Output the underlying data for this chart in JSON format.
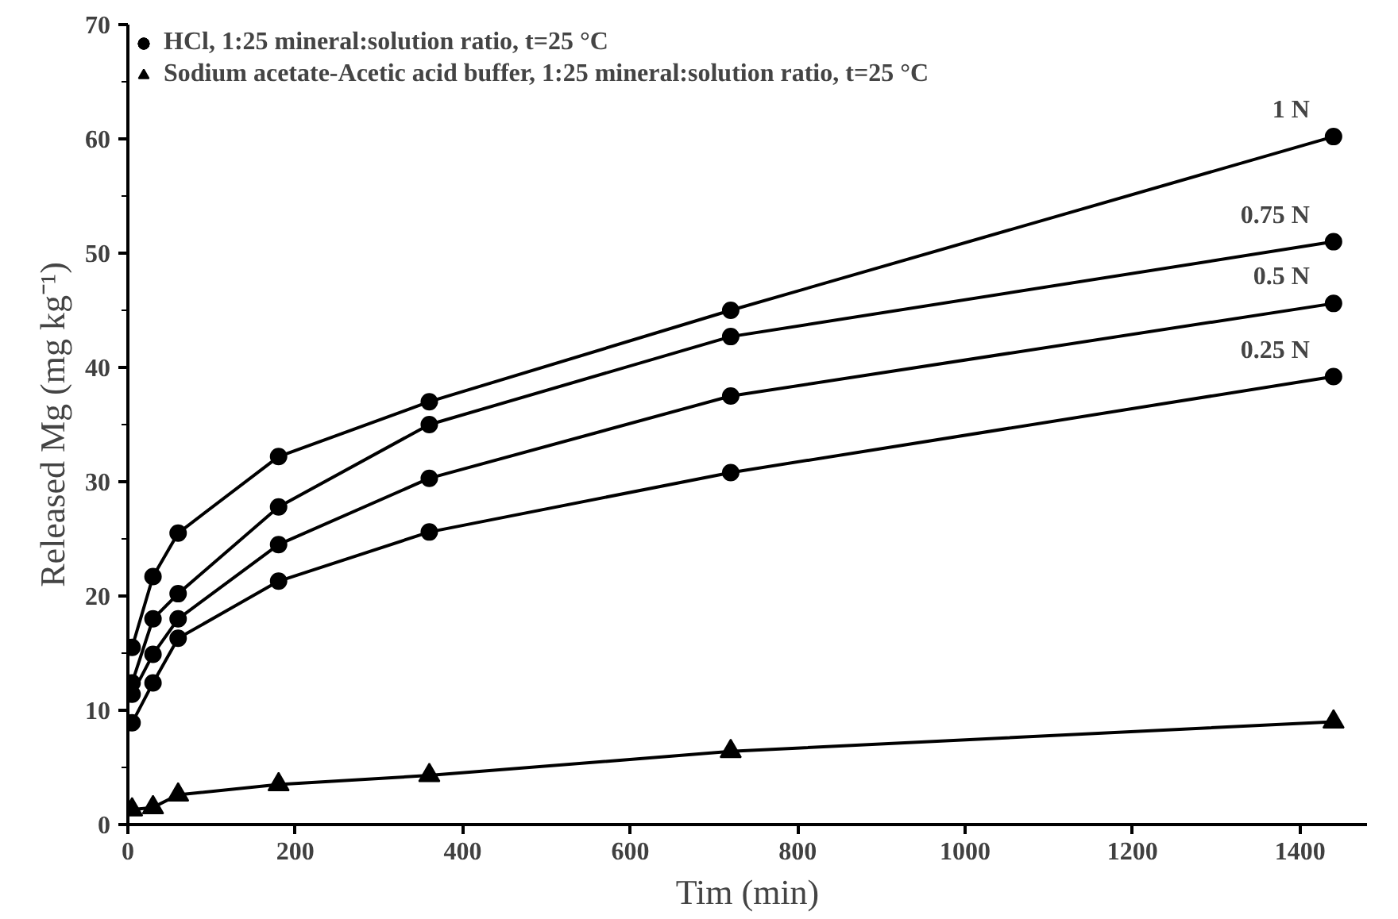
{
  "chart_data": {
    "type": "line",
    "xlabel": "Tim (min)",
    "ylabel": "Released Mg (mg kg⁻¹)",
    "legend_title": "HCl, 1:25 mineral:solution ratio, t=25 °C",
    "x": [
      5,
      30,
      60,
      180,
      360,
      720,
      1440
    ],
    "series": [
      {
        "name": "1 N",
        "color": "#000000",
        "marker": "circle",
        "values": [
          15.5,
          21.7,
          25.5,
          32.2,
          37,
          45,
          60.2
        ]
      },
      {
        "name": "0.75 N",
        "color": "#000000",
        "marker": "circle",
        "values": [
          12.4,
          18,
          20.2,
          27.8,
          35,
          42.7,
          51
        ]
      },
      {
        "name": "0.5 N",
        "color": "#000000",
        "marker": "circle",
        "values": [
          11.4,
          14.9,
          18,
          24.5,
          30.3,
          37.5,
          45.6
        ]
      },
      {
        "name": "0.25 N",
        "color": "#000000",
        "marker": "circle",
        "values": [
          8.9,
          12.4,
          16.3,
          21.3,
          25.6,
          30.8,
          39.2
        ]
      },
      {
        "name": "Sodium acetate-Acetic acid buffer, 1:25 mineral:solution ratio, t=25 °C",
        "color": "#000000",
        "marker": "triangle",
        "values": [
          1.3,
          1.5,
          2.6,
          3.5,
          4.3,
          6.4,
          9
        ]
      }
    ],
    "xlim": [
      0,
      1480
    ],
    "ylim": [
      0,
      70
    ],
    "xticks": [
      0,
      200,
      400,
      600,
      800,
      1000,
      1200,
      1400
    ],
    "yticks": [
      0,
      10,
      20,
      30,
      40,
      50,
      60,
      70
    ],
    "legend": "top left",
    "grid": false
  }
}
